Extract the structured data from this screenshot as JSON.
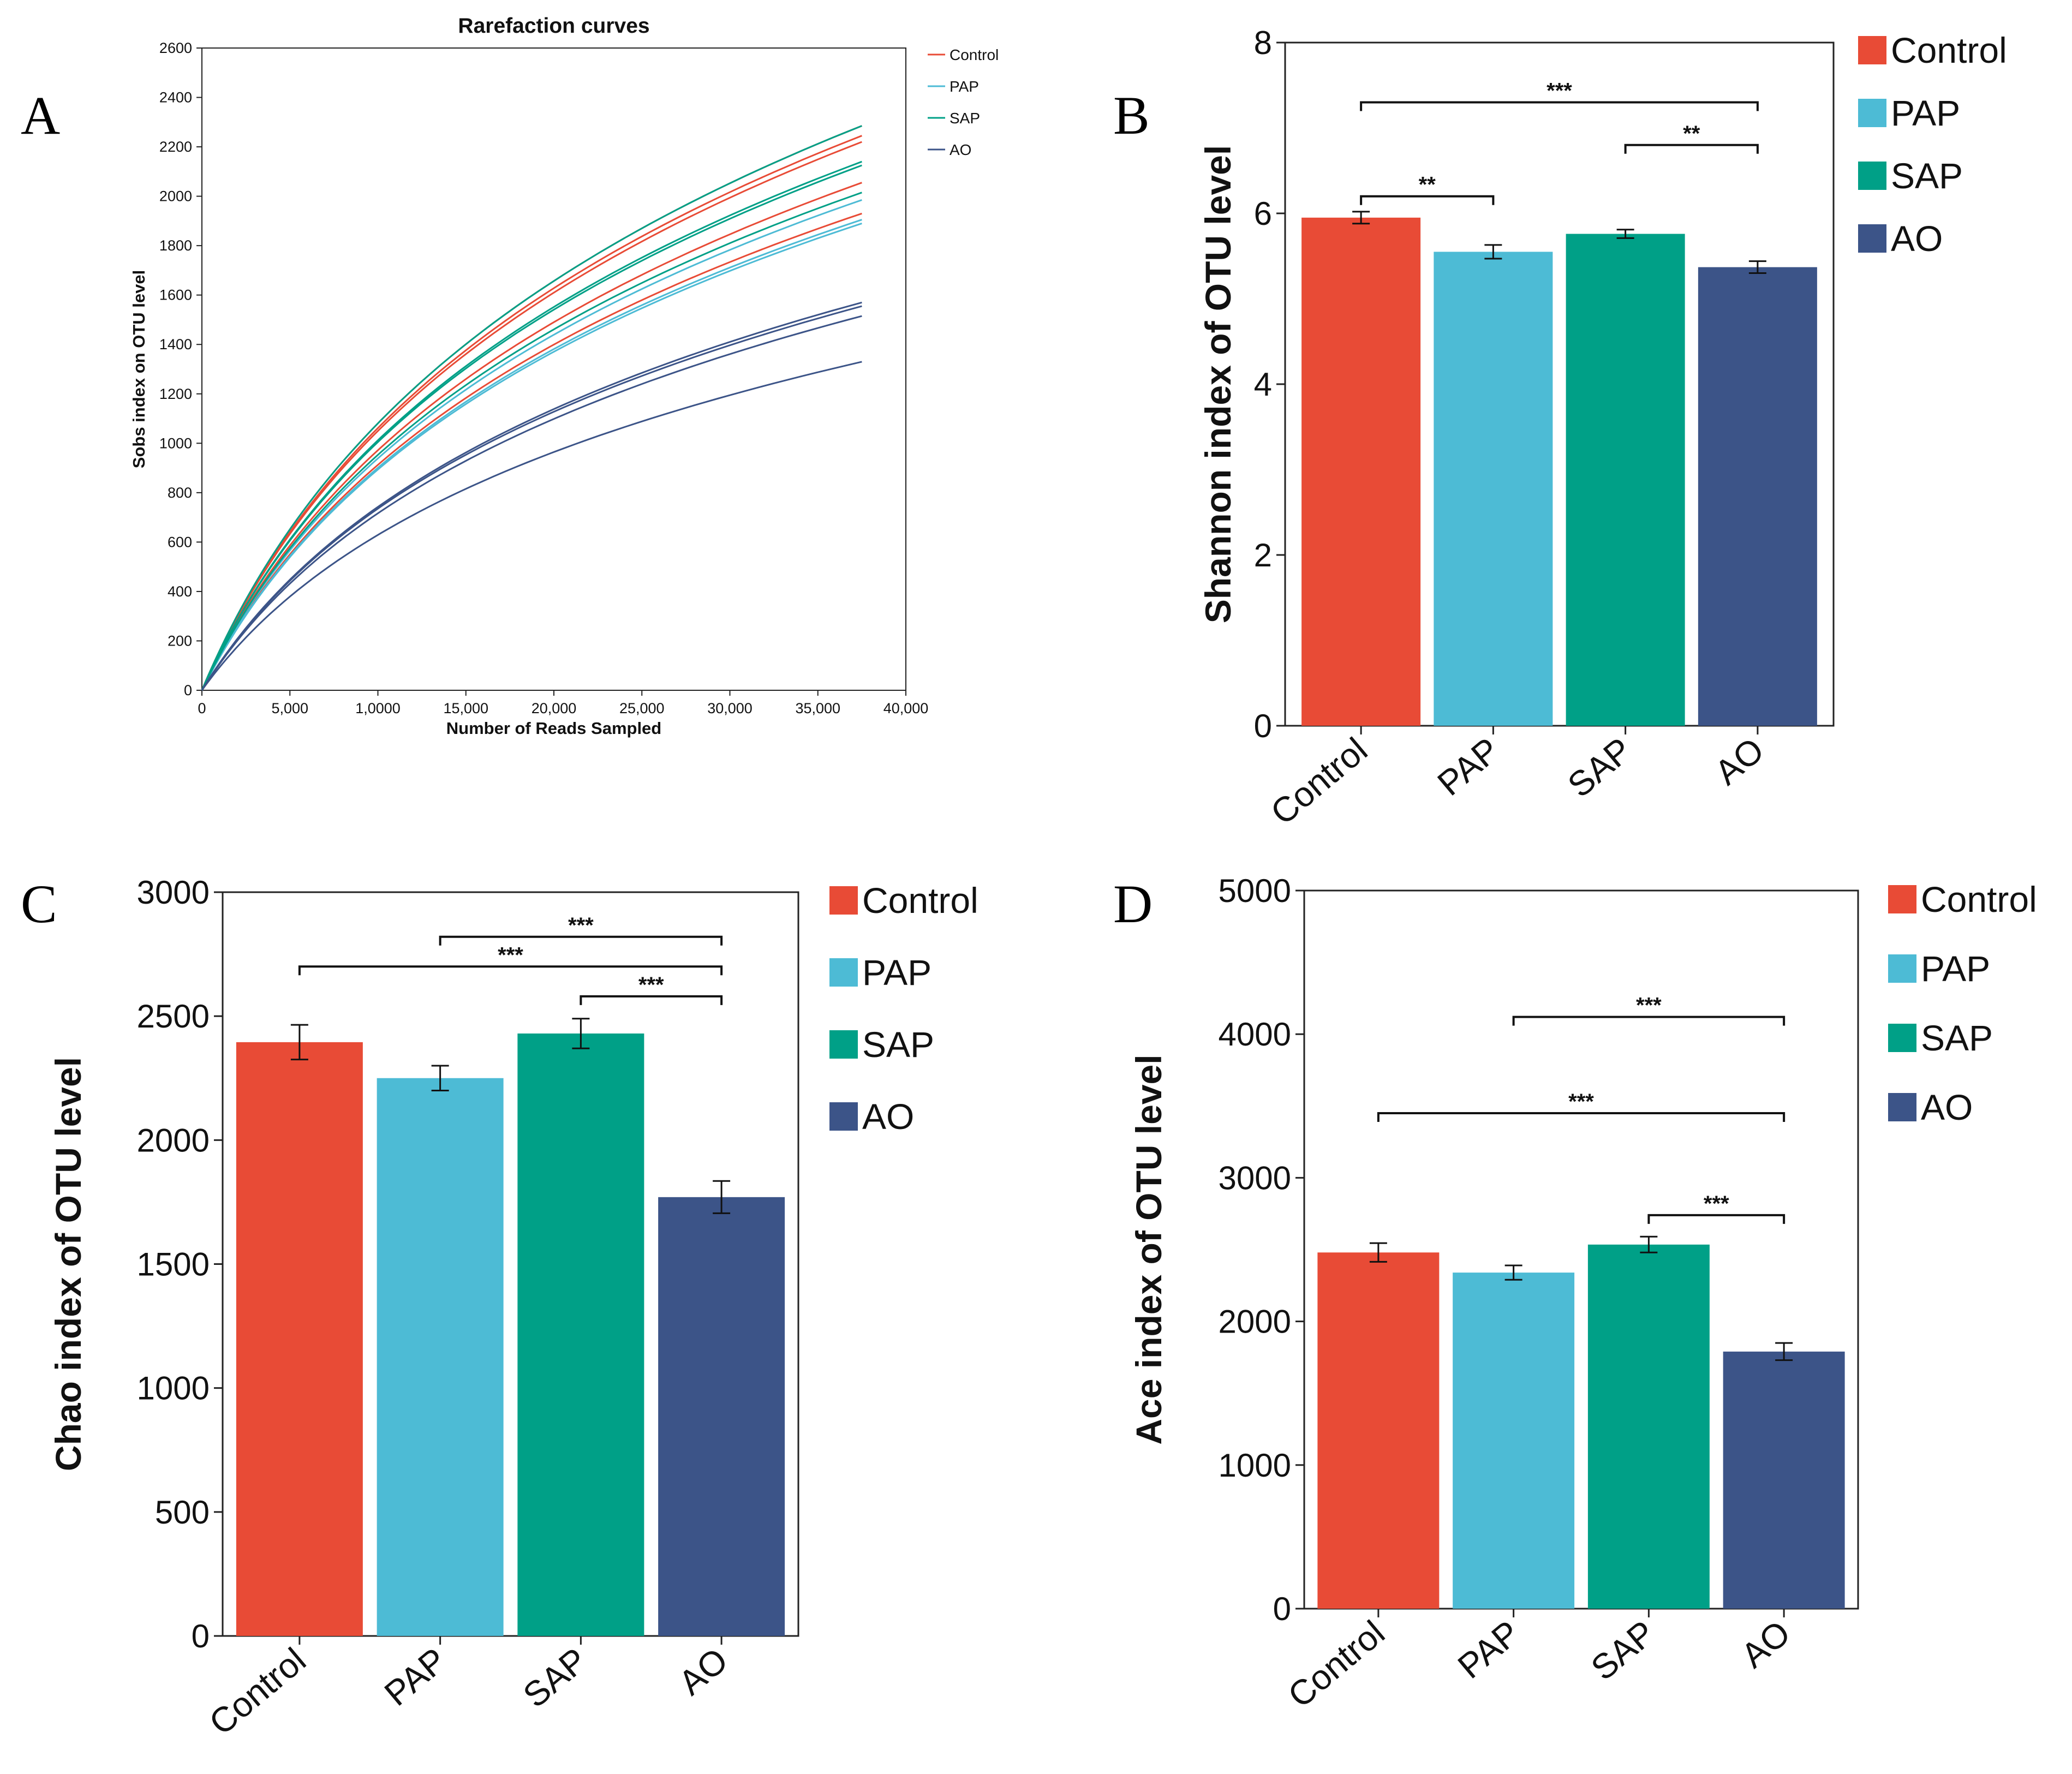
{
  "figure": {
    "panels": [
      "A",
      "B",
      "C",
      "D"
    ]
  },
  "chart_data": [
    {
      "panel": "A",
      "type": "line",
      "title": "Rarefaction curves",
      "xlabel": "Number of Reads Sampled",
      "ylabel": "Sobs index on OTU level",
      "xlim": [
        0,
        40000
      ],
      "ylim": [
        0,
        2600
      ],
      "xticks": [
        0,
        5000,
        10000,
        15000,
        20000,
        25000,
        30000,
        35000,
        40000
      ],
      "xtick_labels": [
        "0",
        "5,000",
        "1,0000",
        "15,000",
        "20,000",
        "25,000",
        "30,000",
        "35,000",
        "40,000"
      ],
      "yticks": [
        0,
        200,
        400,
        600,
        800,
        1000,
        1200,
        1400,
        1600,
        1800,
        2000,
        2200,
        2400,
        2600
      ],
      "ytick_labels": [
        "0",
        "200",
        "400",
        "600",
        "800",
        "1000",
        "1200",
        "1400",
        "1600",
        "1800",
        "2000",
        "2200",
        "2400",
        "2600"
      ],
      "legend_position": "top-right",
      "max_reads": 37500,
      "series": [
        {
          "name": "Control",
          "color": "#E84B36",
          "final_values": [
            2285,
            2245,
            2220,
            2055,
            1930
          ]
        },
        {
          "name": "PAP",
          "color": "#4DBBD5",
          "final_values": [
            1985,
            1905,
            1890
          ]
        },
        {
          "name": "SAP",
          "color": "#00A087",
          "final_values": [
            2285,
            2140,
            2125,
            2015
          ]
        },
        {
          "name": "AO",
          "color": "#3C5488",
          "final_values": [
            1570,
            1555,
            1515,
            1330
          ]
        }
      ]
    },
    {
      "panel": "B",
      "type": "bar",
      "ylabel": "Shannon index of OTU level",
      "ylim": [
        0,
        8
      ],
      "yticks": [
        0,
        2,
        4,
        6,
        8
      ],
      "ytick_labels": [
        "0",
        "2",
        "4",
        "6",
        "8"
      ],
      "categories": [
        "Control",
        "PAP",
        "SAP",
        "AO"
      ],
      "values": [
        5.95,
        5.55,
        5.76,
        5.37
      ],
      "errors": [
        0.07,
        0.08,
        0.05,
        0.07
      ],
      "colors": [
        "#E84B36",
        "#4DBBD5",
        "#00A087",
        "#3C5488"
      ],
      "legend_position": "right",
      "significance": [
        {
          "from": "Control",
          "to": "AO",
          "label": "***",
          "y": 7.3
        },
        {
          "from": "SAP",
          "to": "AO",
          "label": "**",
          "y": 6.8
        },
        {
          "from": "Control",
          "to": "PAP",
          "label": "**",
          "y": 6.2
        }
      ]
    },
    {
      "panel": "C",
      "type": "bar",
      "ylabel": "Chao index of OTU level",
      "ylim": [
        0,
        3000
      ],
      "yticks": [
        0,
        500,
        1000,
        1500,
        2000,
        2500,
        3000
      ],
      "ytick_labels": [
        "0",
        "500",
        "1000",
        "1500",
        "2000",
        "2500",
        "3000"
      ],
      "categories": [
        "Control",
        "PAP",
        "SAP",
        "AO"
      ],
      "values": [
        2395,
        2250,
        2430,
        1770
      ],
      "errors": [
        70,
        50,
        60,
        65
      ],
      "colors": [
        "#E84B36",
        "#4DBBD5",
        "#00A087",
        "#3C5488"
      ],
      "legend_position": "right",
      "significance": [
        {
          "from": "PAP",
          "to": "AO",
          "label": "***",
          "y": 2820
        },
        {
          "from": "Control",
          "to": "AO",
          "label": "***",
          "y": 2700
        },
        {
          "from": "SAP",
          "to": "AO",
          "label": "***",
          "y": 2580
        }
      ]
    },
    {
      "panel": "D",
      "type": "bar",
      "ylabel": "Ace index of OTU level",
      "ylim": [
        0,
        5000
      ],
      "yticks": [
        0,
        1000,
        2000,
        3000,
        4000,
        5000
      ],
      "ytick_labels": [
        "0",
        "1000",
        "2000",
        "3000",
        "4000",
        "5000"
      ],
      "categories": [
        "Control",
        "PAP",
        "SAP",
        "AO"
      ],
      "values": [
        2480,
        2340,
        2535,
        1790
      ],
      "errors": [
        65,
        50,
        55,
        60
      ],
      "colors": [
        "#E84B36",
        "#4DBBD5",
        "#00A087",
        "#3C5488"
      ],
      "legend_position": "right",
      "significance": [
        {
          "from": "PAP",
          "to": "AO",
          "label": "***",
          "y": 4120
        },
        {
          "from": "Control",
          "to": "AO",
          "label": "***",
          "y": 3450
        },
        {
          "from": "SAP",
          "to": "AO",
          "label": "***",
          "y": 2740
        }
      ]
    }
  ]
}
